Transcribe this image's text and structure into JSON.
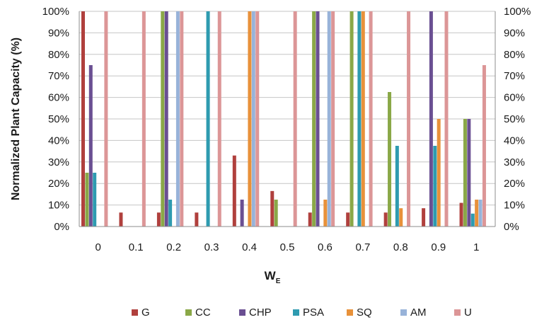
{
  "chart_data": {
    "type": "bar",
    "ylabel": "Normalized Plant Capacity (%)",
    "xlabel_main": "W",
    "xlabel_sub": "E",
    "categories": [
      "0",
      "0.1",
      "0.2",
      "0.3",
      "0.4",
      "0.5",
      "0.6",
      "0.7",
      "0.8",
      "0.9",
      "1"
    ],
    "y_ticks": [
      "0%",
      "10%",
      "20%",
      "30%",
      "40%",
      "50%",
      "60%",
      "70%",
      "80%",
      "90%",
      "100%"
    ],
    "ylim": [
      0,
      100
    ],
    "grid": true,
    "secondary_axis": "right (same scale)",
    "legend_position": "bottom",
    "series": [
      {
        "name": "G",
        "color": "#b0403d",
        "values": [
          100,
          6.5,
          6.5,
          6.5,
          33,
          16.5,
          6.5,
          6.5,
          6.5,
          8.5,
          11
        ]
      },
      {
        "name": "CC",
        "color": "#8aa847",
        "values": [
          25,
          0,
          100,
          0,
          0,
          12.5,
          100,
          100,
          62.5,
          0,
          50
        ]
      },
      {
        "name": "CHP",
        "color": "#6a4f92",
        "values": [
          75,
          0,
          100,
          0,
          12.5,
          0,
          100,
          0,
          0,
          100,
          50
        ]
      },
      {
        "name": "PSA",
        "color": "#2e9bb0",
        "values": [
          25,
          0,
          12.5,
          100,
          0,
          0,
          0,
          100,
          37.5,
          37.5,
          6
        ]
      },
      {
        "name": "SQ",
        "color": "#e8913a",
        "values": [
          0,
          0,
          0,
          0,
          100,
          0,
          12.5,
          100,
          8.5,
          50,
          12.5
        ]
      },
      {
        "name": "AM",
        "color": "#98b3d9",
        "values": [
          0,
          0,
          100,
          0,
          100,
          0,
          100,
          0,
          0,
          0,
          12.5
        ]
      },
      {
        "name": "U",
        "color": "#dc9697",
        "values": [
          100,
          100,
          100,
          100,
          100,
          100,
          100,
          100,
          100,
          100,
          75
        ]
      }
    ]
  }
}
